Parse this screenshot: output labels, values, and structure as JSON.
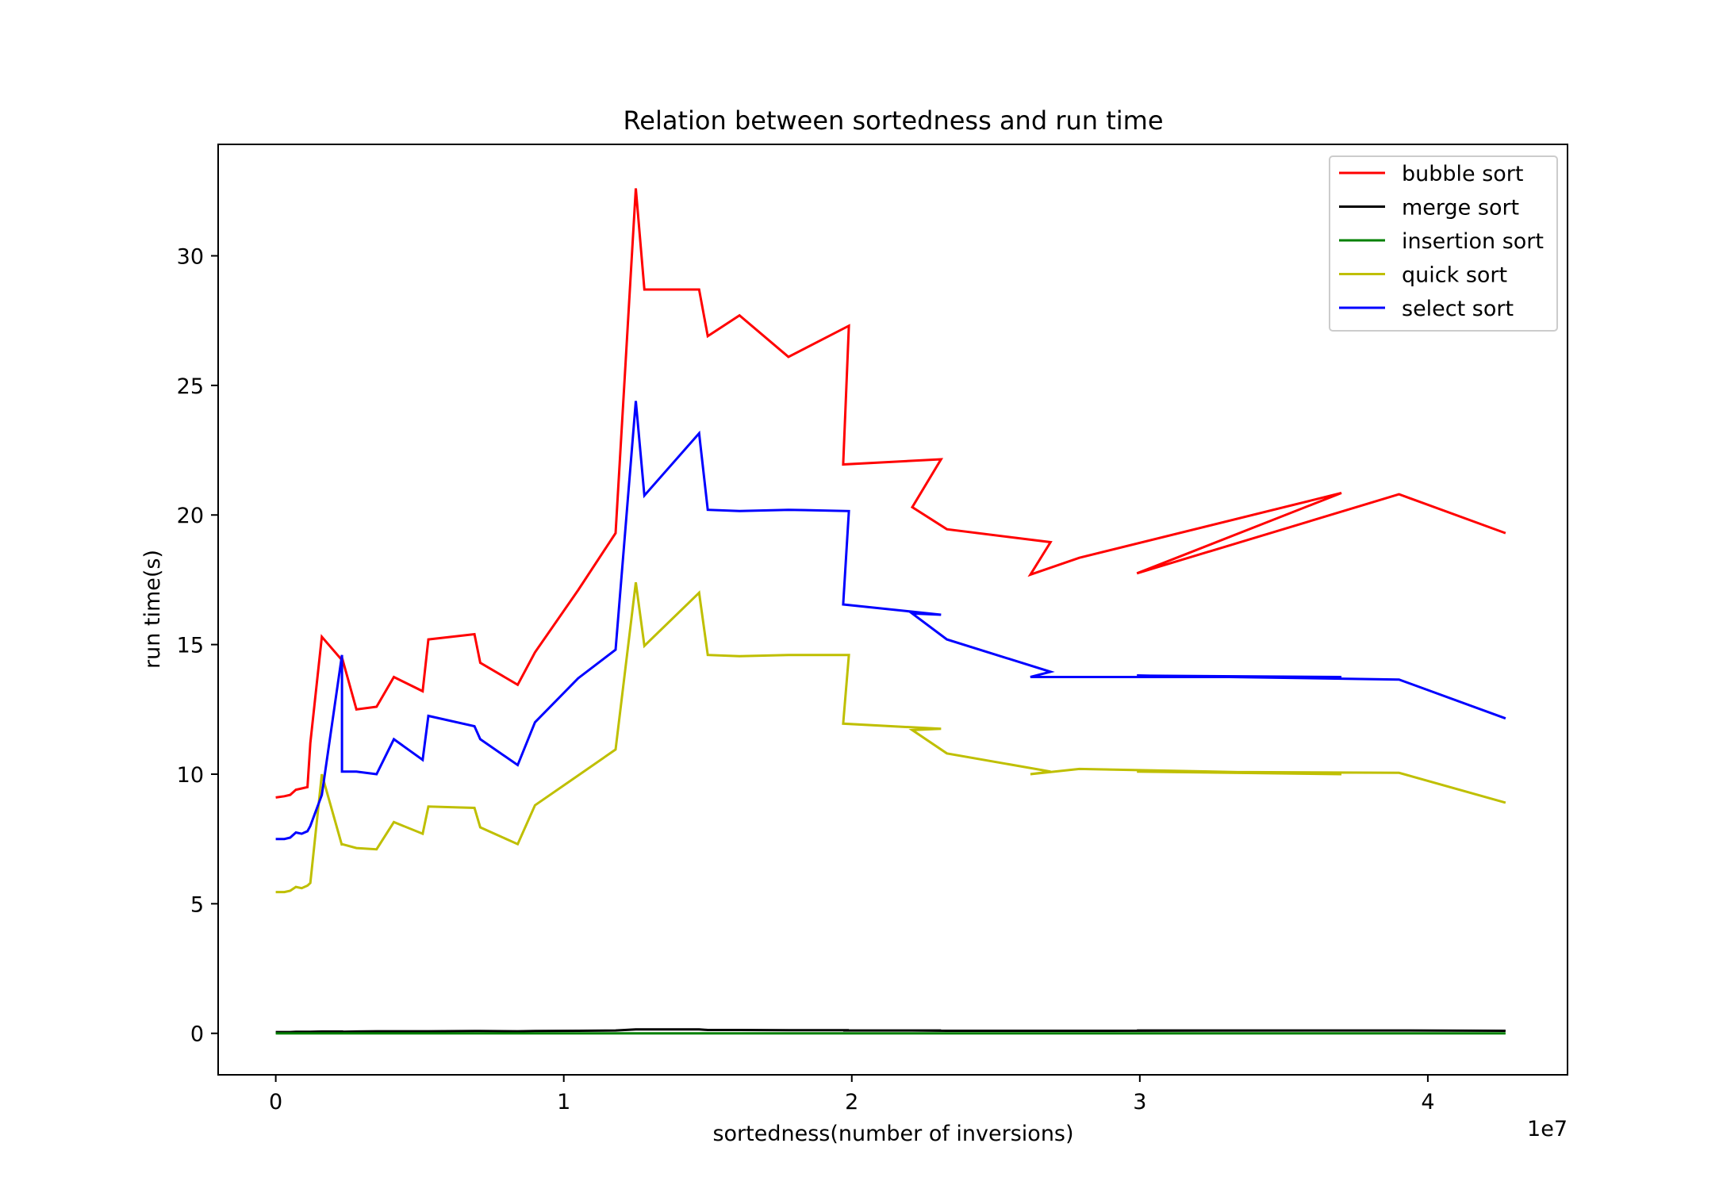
{
  "chart_data": {
    "type": "line",
    "title": "Relation between sortedness and run time",
    "xlabel": "sortedness(number of inversions)",
    "ylabel": "run time(s)",
    "x_offset_label": "1e7",
    "xlim": [
      -0.2,
      4.485
    ],
    "ylim": [
      -1.6,
      34.3
    ],
    "xticks": [
      0,
      1,
      2,
      3,
      4
    ],
    "yticks": [
      0,
      5,
      10,
      15,
      20,
      25,
      30
    ],
    "grid": false,
    "legend_position": "upper right",
    "x": [
      0.0,
      0.03,
      0.05,
      0.07,
      0.09,
      0.11,
      0.12,
      0.16,
      0.23,
      0.23,
      0.28,
      0.35,
      0.41,
      0.51,
      0.53,
      0.69,
      0.71,
      0.84,
      0.9,
      1.05,
      1.18,
      1.25,
      1.28,
      1.47,
      1.5,
      1.61,
      1.78,
      1.99,
      1.97,
      2.31,
      2.21,
      2.33,
      2.69,
      2.62,
      2.79,
      3.7,
      2.99,
      3.9,
      4.27
    ],
    "series": [
      {
        "name": "bubble sort",
        "color": "#ff0000",
        "values": [
          9.1,
          9.15,
          9.2,
          9.4,
          9.45,
          9.5,
          11.2,
          15.3,
          14.4,
          14.5,
          12.5,
          12.6,
          13.75,
          13.2,
          15.2,
          15.4,
          14.3,
          13.45,
          14.7,
          17.1,
          19.3,
          32.6,
          28.7,
          28.7,
          26.9,
          27.7,
          26.1,
          27.3,
          21.95,
          22.15,
          20.3,
          19.45,
          18.95,
          17.7,
          18.35,
          20.85,
          17.75,
          20.8,
          19.3
        ]
      },
      {
        "name": "merge sort",
        "color": "#000000",
        "values": [
          0.05,
          0.05,
          0.05,
          0.06,
          0.06,
          0.06,
          0.06,
          0.07,
          0.07,
          0.06,
          0.07,
          0.08,
          0.08,
          0.08,
          0.08,
          0.09,
          0.09,
          0.08,
          0.09,
          0.1,
          0.11,
          0.15,
          0.15,
          0.15,
          0.13,
          0.13,
          0.12,
          0.12,
          0.11,
          0.11,
          0.11,
          0.1,
          0.1,
          0.1,
          0.1,
          0.11,
          0.11,
          0.11,
          0.1
        ]
      },
      {
        "name": "insertion sort",
        "color": "#008000",
        "values": [
          0.0,
          0.0,
          0.0,
          0.0,
          0.0,
          0.0,
          0.0,
          0.0,
          0.0,
          0.0,
          0.0,
          0.0,
          0.0,
          0.0,
          0.0,
          0.0,
          0.0,
          0.0,
          0.0,
          0.0,
          0.0,
          0.0,
          0.0,
          0.0,
          0.0,
          0.0,
          0.0,
          0.0,
          0.0,
          0.0,
          0.0,
          0.0,
          0.0,
          0.0,
          0.0,
          0.0,
          0.0,
          0.0,
          0.0
        ]
      },
      {
        "name": "quick sort",
        "color": "#bfbf00",
        "values": [
          5.45,
          5.45,
          5.5,
          5.65,
          5.6,
          5.7,
          5.8,
          10.0,
          7.25,
          7.3,
          7.15,
          7.1,
          8.15,
          7.7,
          8.75,
          8.7,
          7.95,
          7.3,
          8.8,
          9.95,
          10.95,
          17.4,
          14.95,
          17.0,
          14.6,
          14.55,
          14.6,
          14.6,
          11.95,
          11.75,
          11.7,
          10.8,
          10.1,
          10.0,
          10.2,
          10.0,
          10.1,
          10.05,
          8.9
        ]
      },
      {
        "name": "select sort",
        "color": "#0000ff",
        "values": [
          7.5,
          7.5,
          7.55,
          7.75,
          7.7,
          7.8,
          8.0,
          9.2,
          14.6,
          10.1,
          10.1,
          10.0,
          11.35,
          10.55,
          12.25,
          11.85,
          11.35,
          10.35,
          12.0,
          13.7,
          14.8,
          24.4,
          20.75,
          23.15,
          20.2,
          20.15,
          20.2,
          20.15,
          16.55,
          16.15,
          16.2,
          15.2,
          13.95,
          13.75,
          13.75,
          13.75,
          13.8,
          13.65,
          12.15
        ]
      }
    ]
  }
}
